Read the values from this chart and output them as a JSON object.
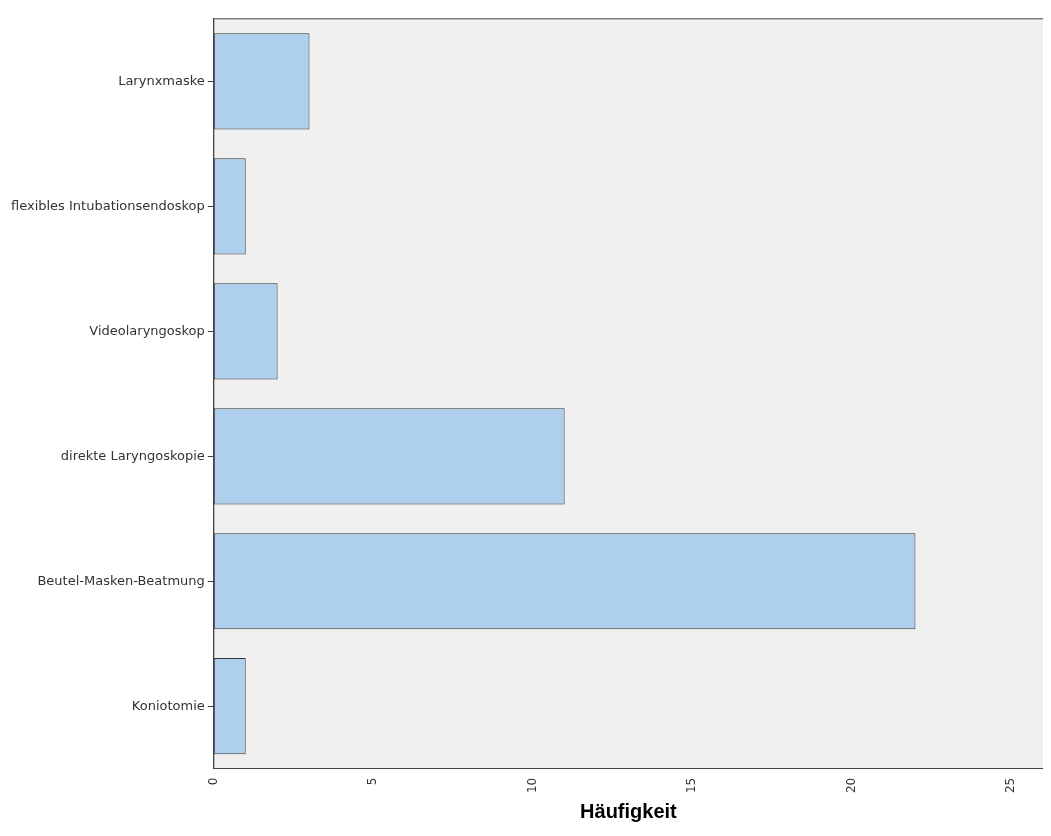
{
  "chart_data": {
    "type": "bar",
    "orientation": "horizontal",
    "xlabel": "Häufigkeit",
    "categories": [
      "Larynxmaske",
      "flexibles Intubationsendoskop",
      "Videolaryngoskop",
      "direkte Laryngoskopie",
      "Beutel-Masken-Beatmung",
      "Koniotomie"
    ],
    "values": [
      3,
      1,
      2,
      11,
      22,
      1
    ],
    "color": "#aed0ee",
    "xlim": [
      0,
      26
    ],
    "xticks": [
      0,
      5,
      10,
      15,
      20,
      25
    ],
    "grid": false,
    "legend": false
  }
}
